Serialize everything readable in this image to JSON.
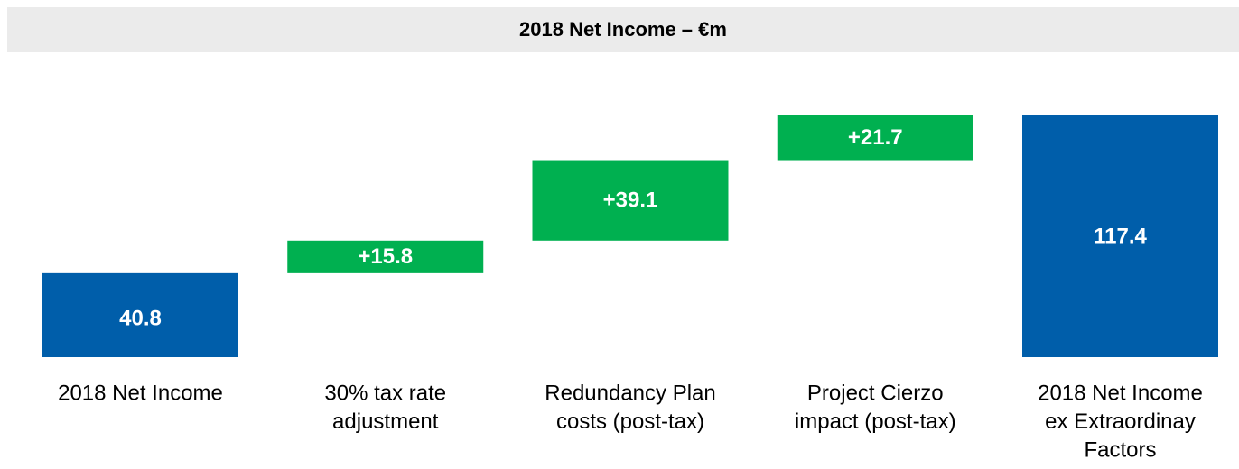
{
  "chart_data": {
    "type": "waterfall",
    "title": "2018 Net Income – €m",
    "categories": [
      [
        "2018 Net Income"
      ],
      [
        "30% tax rate",
        "adjustment"
      ],
      [
        "Redundancy Plan",
        "costs (post-tax)"
      ],
      [
        "Project Cierzo",
        "impact (post-tax)"
      ],
      [
        "2018 Net Income",
        "ex Extraordinay",
        "Factors"
      ]
    ],
    "values": [
      40.8,
      15.8,
      39.1,
      21.7,
      117.4
    ],
    "value_labels": [
      "40.8",
      "+15.8",
      "+39.1",
      "+21.7",
      "117.4"
    ],
    "measures": [
      "absolute",
      "relative",
      "relative",
      "relative",
      "total"
    ],
    "colors": {
      "absolute": "#005eaa",
      "relative": "#00b050",
      "total": "#005eaa"
    }
  }
}
